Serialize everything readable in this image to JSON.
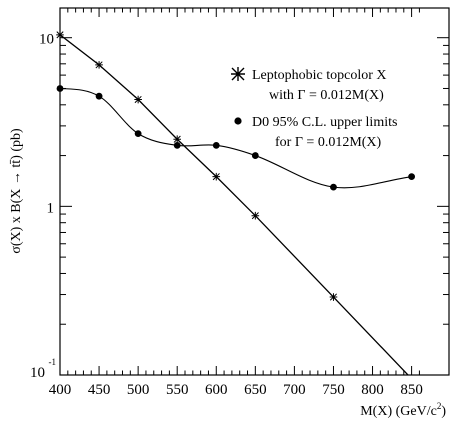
{
  "chart_data": {
    "type": "line",
    "title": "",
    "xlabel": "M(X) (GeV/c",
    "xlabel_sup": "2",
    "xlabel_close": ")",
    "ylabel": "σ(X) x B(X → tt̄) (pb)",
    "xlim": [
      400,
      870
    ],
    "ylim": [
      0.1,
      15
    ],
    "yscale": "log",
    "grid": false,
    "legend_position": "top-right",
    "x_ticks": [
      {
        "value": 400,
        "label": "400"
      },
      {
        "value": 450,
        "label": "450"
      },
      {
        "value": 500,
        "label": "500"
      },
      {
        "value": 550,
        "label": "550"
      },
      {
        "value": 600,
        "label": "600"
      },
      {
        "value": 650,
        "label": "650"
      },
      {
        "value": 700,
        "label": "700"
      },
      {
        "value": 750,
        "label": "750"
      },
      {
        "value": 800,
        "label": "800"
      },
      {
        "value": 850,
        "label": "850"
      }
    ],
    "y_ticks": [
      {
        "value": 10,
        "label": "10"
      },
      {
        "value": 1,
        "label": "1"
      },
      {
        "value": 0.1,
        "label": "10",
        "exponent": "-1"
      }
    ],
    "series": [
      {
        "name": "Leptophobic topcolor X",
        "name_line2": "with Γ = 0.012M(X)",
        "marker": "star",
        "line": "straight",
        "x": [
          400,
          450,
          500,
          550,
          600,
          650,
          750,
          850
        ],
        "y": [
          10.4,
          6.9,
          4.3,
          2.5,
          1.5,
          0.88,
          0.29,
          0.095
        ]
      },
      {
        "name": "D0 95% C.L. upper limits",
        "name_line2": "for Γ = 0.012M(X)",
        "marker": "circle",
        "line": "smooth",
        "x": [
          400,
          450,
          500,
          550,
          600,
          650,
          750,
          850
        ],
        "y": [
          5.0,
          4.5,
          2.7,
          2.3,
          2.3,
          2.0,
          1.3,
          1.5
        ]
      }
    ]
  }
}
